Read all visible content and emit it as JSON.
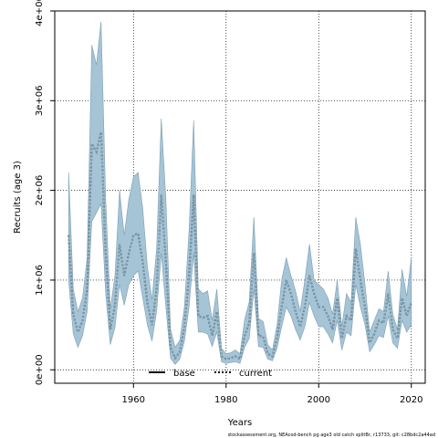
{
  "chart_data": {
    "type": "line",
    "title": "",
    "xlabel": "Years",
    "ylabel": "Recruits (age 3)",
    "xlim": [
      1943,
      2023
    ],
    "ylim": [
      -150000,
      4000000
    ],
    "x_ticks": [
      1960,
      1980,
      2000,
      2020
    ],
    "x_tick_labels": [
      "1960",
      "1980",
      "2000",
      "2020"
    ],
    "y_ticks": [
      0,
      1000000,
      2000000,
      3000000,
      4000000
    ],
    "y_tick_labels": [
      "0e+00",
      "1e+06",
      "2e+06",
      "3e+06",
      "4e+06"
    ],
    "grid": true,
    "legend_position": "bottom-left",
    "footer": "stockassessment.org, NEAcod-bench pg age3 old catch splitBr, r13733, git: c28bdc2a44ad",
    "colors": {
      "band": "#a5c4d6",
      "band_edge": "#7f9fb2",
      "line": "#000000"
    },
    "x": [
      1946,
      1947,
      1948,
      1949,
      1950,
      1951,
      1952,
      1953,
      1954,
      1955,
      1956,
      1957,
      1958,
      1959,
      1960,
      1961,
      1962,
      1963,
      1964,
      1965,
      1966,
      1967,
      1968,
      1969,
      1970,
      1971,
      1972,
      1973,
      1974,
      1975,
      1976,
      1977,
      1978,
      1979,
      1980,
      1981,
      1982,
      1983,
      1984,
      1985,
      1986,
      1987,
      1988,
      1989,
      1990,
      1991,
      1992,
      1993,
      1994,
      1995,
      1996,
      1997,
      1998,
      1999,
      2000,
      2001,
      2002,
      2003,
      2004,
      2005,
      2006,
      2007,
      2008,
      2009,
      2010,
      2011,
      2012,
      2013,
      2014,
      2015,
      2016,
      2017,
      2018,
      2019,
      2020
    ],
    "series": [
      {
        "name": "base",
        "style": "solid",
        "values": [
          1500000,
          620000,
          420000,
          550000,
          900000,
          2520000,
          2430000,
          2650000,
          1300000,
          450000,
          720000,
          1400000,
          1050000,
          1300000,
          1500000,
          1520000,
          1200000,
          750000,
          500000,
          900000,
          1950000,
          1200000,
          250000,
          130000,
          200000,
          480000,
          1050000,
          1950000,
          600000,
          580000,
          600000,
          380000,
          650000,
          150000,
          120000,
          130000,
          150000,
          120000,
          380000,
          520000,
          1300000,
          380000,
          370000,
          180000,
          150000,
          350000,
          700000,
          1000000,
          850000,
          650000,
          480000,
          700000,
          1050000,
          850000,
          700000,
          700000,
          600000,
          450000,
          800000,
          350000,
          600000,
          550000,
          1350000,
          1000000,
          700000,
          300000,
          400000,
          550000,
          520000,
          850000,
          450000,
          350000,
          800000,
          600000,
          750000
        ]
      },
      {
        "name": "current",
        "style": "dotted",
        "values": [
          1500000,
          620000,
          420000,
          550000,
          900000,
          2520000,
          2430000,
          2650000,
          1300000,
          450000,
          720000,
          1400000,
          1050000,
          1300000,
          1500000,
          1520000,
          1200000,
          750000,
          500000,
          900000,
          1950000,
          1200000,
          250000,
          130000,
          200000,
          480000,
          1050000,
          1950000,
          600000,
          580000,
          600000,
          380000,
          650000,
          150000,
          120000,
          130000,
          150000,
          120000,
          380000,
          520000,
          1300000,
          380000,
          370000,
          180000,
          150000,
          350000,
          700000,
          1000000,
          850000,
          650000,
          480000,
          700000,
          1050000,
          850000,
          700000,
          700000,
          600000,
          450000,
          800000,
          350000,
          600000,
          550000,
          1350000,
          1000000,
          700000,
          300000,
          400000,
          550000,
          520000,
          850000,
          450000,
          350000,
          800000,
          600000,
          750000
        ]
      }
    ],
    "band": {
      "lower": [
        1000000,
        400000,
        250000,
        380000,
        650000,
        1650000,
        1750000,
        1850000,
        850000,
        280000,
        470000,
        950000,
        720000,
        950000,
        1050000,
        1100000,
        800000,
        500000,
        320000,
        650000,
        1300000,
        700000,
        130000,
        60000,
        120000,
        320000,
        700000,
        1300000,
        420000,
        420000,
        400000,
        260000,
        420000,
        90000,
        70000,
        80000,
        90000,
        70000,
        250000,
        350000,
        900000,
        260000,
        250000,
        120000,
        100000,
        240000,
        480000,
        700000,
        600000,
        450000,
        330000,
        480000,
        750000,
        600000,
        480000,
        480000,
        400000,
        300000,
        550000,
        220000,
        420000,
        380000,
        950000,
        700000,
        500000,
        200000,
        280000,
        380000,
        360000,
        600000,
        300000,
        240000,
        550000,
        420000,
        500000
      ],
      "upper": [
        2200000,
        900000,
        650000,
        800000,
        1250000,
        3620000,
        3400000,
        3880000,
        1900000,
        680000,
        1050000,
        2000000,
        1500000,
        1900000,
        2150000,
        2200000,
        1800000,
        1150000,
        780000,
        1350000,
        2800000,
        1900000,
        450000,
        250000,
        330000,
        700000,
        1550000,
        2780000,
        900000,
        850000,
        880000,
        550000,
        900000,
        240000,
        180000,
        190000,
        220000,
        180000,
        560000,
        760000,
        1700000,
        570000,
        540000,
        280000,
        220000,
        500000,
        1000000,
        1250000,
        1050000,
        880000,
        650000,
        1000000,
        1400000,
        1000000,
        950000,
        900000,
        800000,
        620000,
        1000000,
        480000,
        850000,
        750000,
        1700000,
        1400000,
        950000,
        420000,
        550000,
        680000,
        650000,
        1100000,
        620000,
        450000,
        1120000,
        820000,
        1250000
      ]
    }
  }
}
